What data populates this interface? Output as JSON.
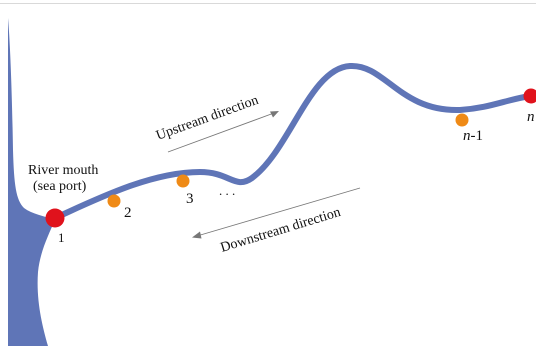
{
  "colors": {
    "river": "#5f75b7",
    "sea": "#5f75b7",
    "end_node": "#e0121c",
    "mid_node": "#ef8a16",
    "arrow": "#777777",
    "text": "#111111",
    "frame": "#d9d9d9"
  },
  "labels": {
    "mouth_line1": "River mouth",
    "mouth_line2": "(sea port)",
    "upstream": "Upstream direction",
    "downstream": "Downstream direction",
    "ellipsis": ". . ."
  },
  "nodes": [
    {
      "label": "1",
      "type": "mouth"
    },
    {
      "label": "2",
      "type": "intermediate"
    },
    {
      "label": "3",
      "type": "intermediate"
    },
    {
      "label_prefix": "n",
      "label_suffix": "-1",
      "type": "intermediate"
    },
    {
      "label": "n",
      "type": "end"
    }
  ]
}
